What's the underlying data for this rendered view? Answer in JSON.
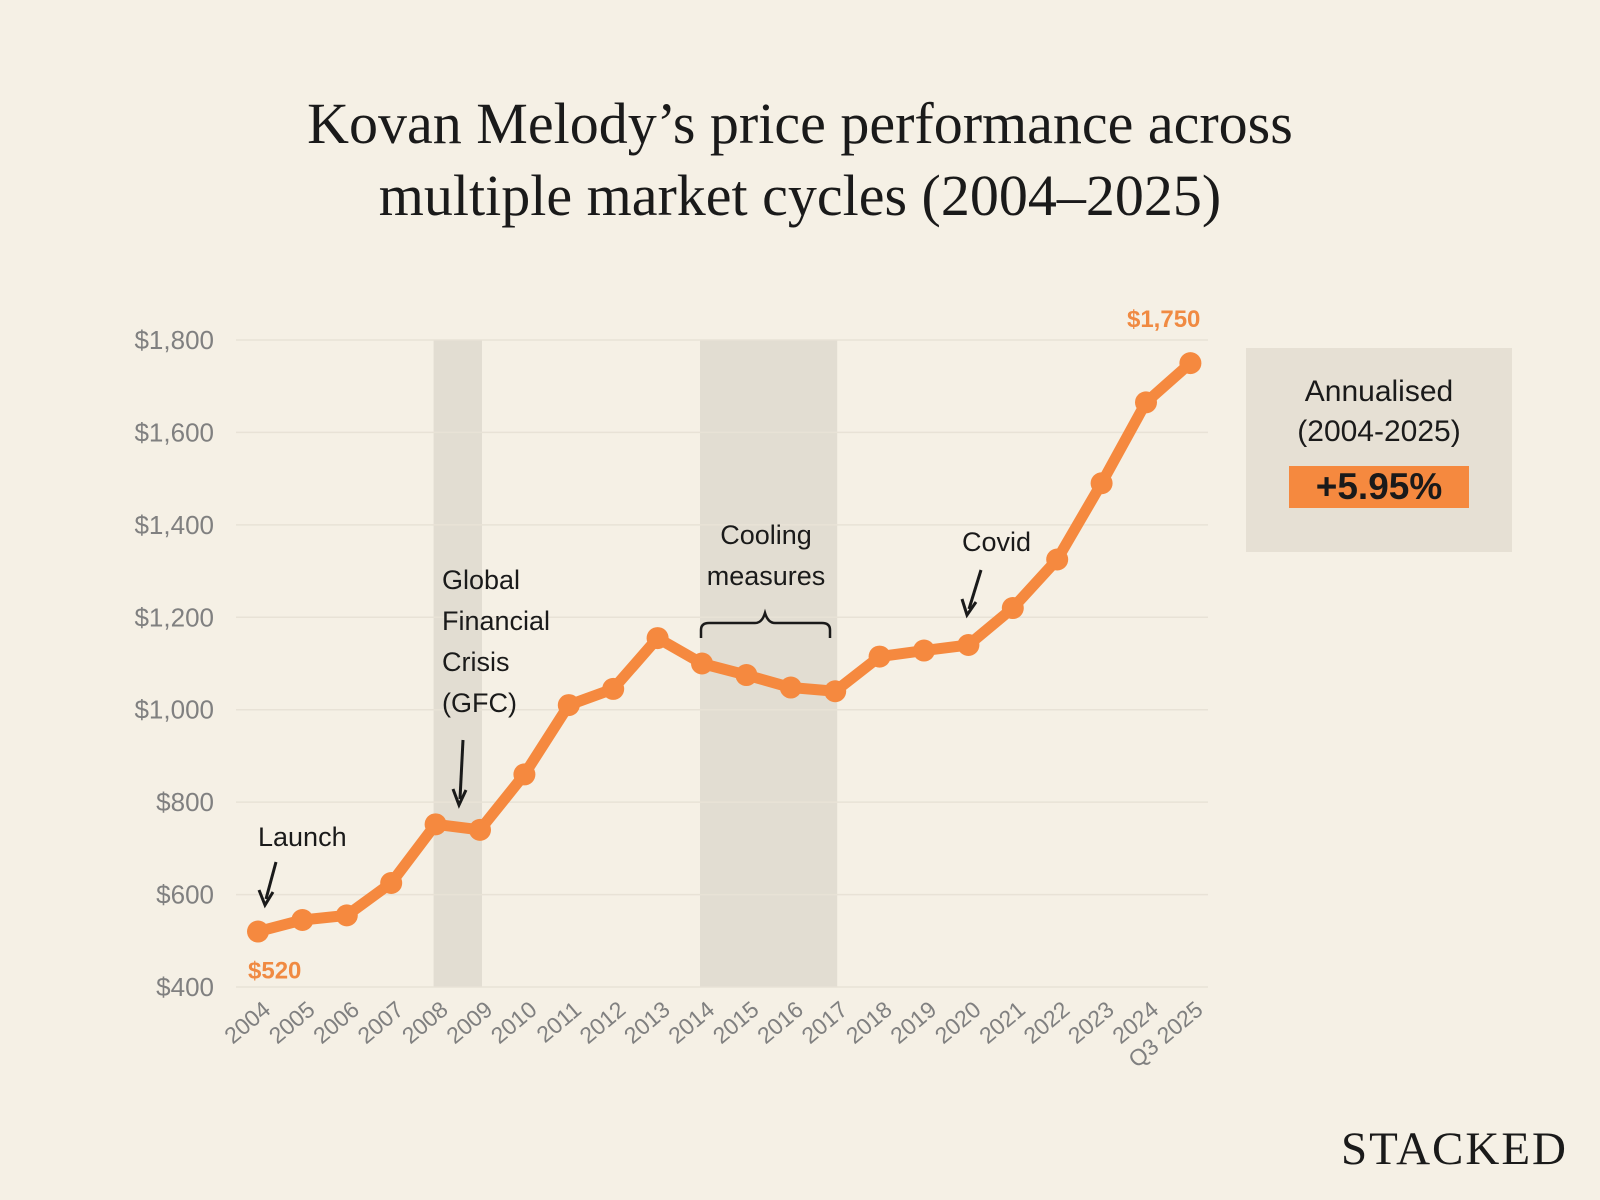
{
  "title": {
    "line1": "Kovan Melody’s price performance across",
    "line2": "multiple market cycles (2004–2025)"
  },
  "colors": {
    "background": "#f5f0e5",
    "line": "#f5893f",
    "shading": "#e2ddd2",
    "grid": "#e8e2d6",
    "tick_text": "#808080"
  },
  "annotations": {
    "launch": "Launch",
    "gfc": [
      "Global",
      "Financial",
      "Crisis",
      "(GFC)"
    ],
    "cooling": [
      "Cooling",
      "measures"
    ],
    "covid": "Covid"
  },
  "panel": {
    "label_line1": "Annualised",
    "label_line2": "(2004-2025)",
    "value": "+5.95%"
  },
  "brand": "STACKED",
  "chart_data": {
    "type": "line",
    "title": "Kovan Melody’s price performance across multiple market cycles (2004–2025)",
    "xlabel": "",
    "ylabel": "",
    "categories": [
      "2004",
      "2005",
      "2006",
      "2007",
      "2008",
      "2009",
      "2010",
      "2011",
      "2012",
      "2013",
      "2014",
      "2015",
      "2016",
      "2017",
      "2018",
      "2019",
      "2020",
      "2021",
      "2022",
      "2023",
      "2024",
      "Q3 2025"
    ],
    "series": [
      {
        "values": [
          520,
          545,
          555,
          625,
          752,
          740,
          860,
          1010,
          1045,
          1155,
          1100,
          1075,
          1048,
          1040,
          1115,
          1128,
          1140,
          1220,
          1325,
          1490,
          1665,
          1750
        ]
      }
    ],
    "ylim": [
      400,
      1800
    ],
    "yticks": [
      400,
      600,
      800,
      1000,
      1200,
      1400,
      1600,
      1800
    ],
    "ytick_labels": [
      "$400",
      "$600",
      "$800",
      "$1,000",
      "$1,200",
      "$1,400",
      "$1,600",
      "$1,800"
    ],
    "data_labels": [
      {
        "index": 0,
        "text": "$520"
      },
      {
        "index": 21,
        "text": "$1,750"
      }
    ],
    "shaded_ranges": [
      {
        "name": "Global Financial Crisis (GFC)",
        "from": "2008",
        "to": "2009"
      },
      {
        "name": "Cooling measures",
        "from": "2014",
        "to": "2017"
      }
    ],
    "grid": true,
    "legend": "none"
  }
}
